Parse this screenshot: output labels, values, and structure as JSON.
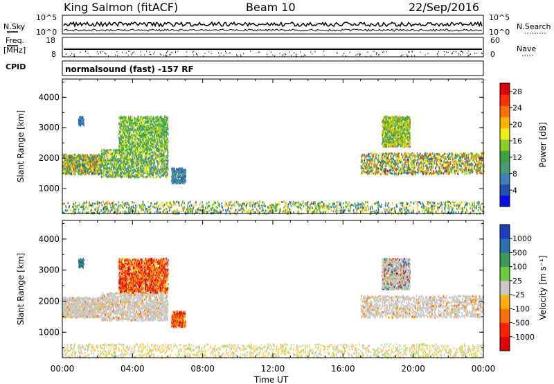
{
  "header": {
    "station": "King Salmon (fitACF)",
    "beam": "Beam 10",
    "date": "22/Sep/2016"
  },
  "strips": {
    "nsky_label": "N.Sky",
    "nsky_ticks": [
      "10^5",
      "10^0"
    ],
    "nsearch_label": "N.Search",
    "nsearch_ticks": [
      "10^5",
      "10^0"
    ],
    "freq_label_1": "Freq.",
    "freq_label_2": "[MHz]",
    "freq_ticks": [
      "18",
      "8"
    ],
    "nave_label": "Nave",
    "nave_ticks": [
      "60",
      "0"
    ],
    "cpid_label": "CPID",
    "cpid_text": "normalsound (fast) -157 RF"
  },
  "chart_data": [
    {
      "type": "heatmap",
      "name": "power-panel",
      "ylabel": "Slant Range [km]",
      "xlabel": "Time UT",
      "x_ticks": [
        "00:00",
        "04:00",
        "08:00",
        "12:00",
        "16:00",
        "20:00",
        "00:00"
      ],
      "xlim_hours": [
        0,
        24
      ],
      "y_ticks": [
        "1000",
        "2000",
        "3000",
        "4000"
      ],
      "ylim": [
        180,
        4600
      ],
      "colorbar": {
        "label": "Power [dB]",
        "ticks": [
          "4",
          "8",
          "12",
          "16",
          "20",
          "24",
          "28"
        ],
        "range": [
          0,
          30
        ],
        "colors": [
          "#0a0af0",
          "#2050b0",
          "#3f7fb8",
          "#4a9a70",
          "#3aa040",
          "#8ccc28",
          "#eeee10",
          "#ffb000",
          "#ff7000",
          "#ff3000",
          "#e00000"
        ]
      },
      "regions": [
        {
          "t0": 0.0,
          "t1": 2.2,
          "r0": 1500,
          "r1": 2150,
          "vmin": 4,
          "vmax": 24
        },
        {
          "t0": 2.2,
          "t1": 6.0,
          "r0": 1400,
          "r1": 2300,
          "vmin": 6,
          "vmax": 20
        },
        {
          "t0": 3.2,
          "t1": 6.0,
          "r0": 2300,
          "r1": 3400,
          "vmin": 8,
          "vmax": 18
        },
        {
          "t0": 6.2,
          "t1": 7.0,
          "r0": 1200,
          "r1": 1700,
          "vmin": 4,
          "vmax": 10
        },
        {
          "t0": 0.9,
          "t1": 1.2,
          "r0": 3100,
          "r1": 3400,
          "vmin": 4,
          "vmax": 8
        },
        {
          "t0": 17.0,
          "t1": 24.0,
          "r0": 1500,
          "r1": 2200,
          "vmin": 4,
          "vmax": 26
        },
        {
          "t0": 18.2,
          "t1": 19.8,
          "r0": 2400,
          "r1": 3400,
          "vmin": 8,
          "vmax": 22
        },
        {
          "t0": 0.0,
          "t1": 24.0,
          "r0": 200,
          "r1": 600,
          "vmin": 4,
          "vmax": 22
        }
      ]
    },
    {
      "type": "heatmap",
      "name": "velocity-panel",
      "ylabel": "Slant Range [km]",
      "xlabel": "Time UT",
      "x_ticks": [
        "00:00",
        "04:00",
        "08:00",
        "12:00",
        "16:00",
        "20:00",
        "00:00"
      ],
      "xlim_hours": [
        0,
        24
      ],
      "y_ticks": [
        "1000",
        "2000",
        "3000",
        "4000"
      ],
      "ylim": [
        180,
        4600
      ],
      "colorbar": {
        "label": "Velocity [m s⁻¹]",
        "ticks": [
          "1000",
          "500",
          "100",
          "25",
          "-25",
          "-100",
          "-500",
          "-1000"
        ],
        "colors": [
          "#1a3fbf",
          "#2a6fb0",
          "#3a9a5a",
          "#6acc3a",
          "#c8c8c8",
          "#ffb000",
          "#ff7000",
          "#ff2000",
          "#e00000"
        ]
      },
      "regions": [
        {
          "t0": 0.0,
          "t1": 2.2,
          "r0": 1500,
          "r1": 2150,
          "kind": "ground"
        },
        {
          "t0": 2.2,
          "t1": 6.0,
          "r0": 1400,
          "r1": 2300,
          "kind": "ground"
        },
        {
          "t0": 3.2,
          "t1": 6.0,
          "r0": 2300,
          "r1": 3400,
          "kind": "neg"
        },
        {
          "t0": 6.2,
          "t1": 7.0,
          "r0": 1200,
          "r1": 1700,
          "kind": "neg"
        },
        {
          "t0": 0.9,
          "t1": 1.2,
          "r0": 3100,
          "r1": 3400,
          "kind": "pos"
        },
        {
          "t0": 17.0,
          "t1": 24.0,
          "r0": 1500,
          "r1": 2200,
          "kind": "ground"
        },
        {
          "t0": 18.2,
          "t1": 19.8,
          "r0": 2400,
          "r1": 3400,
          "kind": "mixed"
        },
        {
          "t0": 0.0,
          "t1": 24.0,
          "r0": 200,
          "r1": 650,
          "kind": "low"
        }
      ]
    }
  ]
}
